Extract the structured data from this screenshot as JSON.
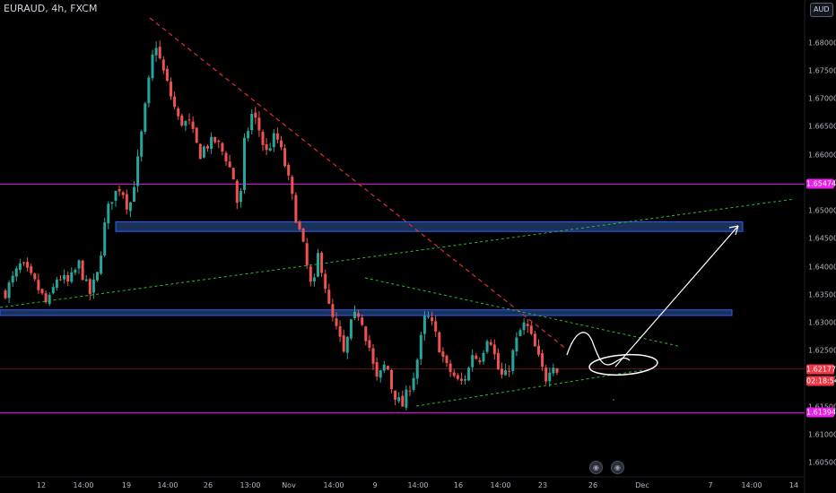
{
  "header": {
    "title": "EURAUD, 4h, FXCM",
    "currency_button": "AUD"
  },
  "colors": {
    "bg": "#000000",
    "bull": "#26a69a",
    "bear": "#ef5350",
    "magenta": "#cc11cc",
    "zone_fill": "#1e3a6b",
    "zone_stroke": "#2962ff",
    "green_dash": "#2eb82e",
    "red_dash": "#e03030",
    "annotation": "#ffffff",
    "current_price": "#f23645",
    "level_tag": "#e91ee9"
  },
  "chart_data": {
    "type": "candlestick",
    "symbol": "EURAUD",
    "timeframe": "4h",
    "broker": "FXCM",
    "y_range": [
      1.6025,
      1.686
    ],
    "y_ticks": [
      "1.68000",
      "1.67500",
      "1.67000",
      "1.66500",
      "1.66000",
      "1.65500",
      "1.65000",
      "1.64500",
      "1.64000",
      "1.63500",
      "1.63000",
      "1.62500",
      "1.62000",
      "1.61500",
      "1.61000",
      "1.60500"
    ],
    "x_ticks": [
      "12",
      "14:00",
      "19",
      "14:00",
      "26",
      "13:00",
      "Nov",
      "14:00",
      "9",
      "14:00",
      "16",
      "14:00",
      "23",
      "26",
      "Dec",
      "7",
      "14:00",
      "14"
    ],
    "candle_count": 151,
    "price_path": [
      [
        0,
        1.6355
      ],
      [
        6,
        1.6405
      ],
      [
        12,
        1.6365
      ],
      [
        16,
        1.633
      ],
      [
        20,
        1.6385
      ],
      [
        24,
        1.637
      ],
      [
        28,
        1.6405
      ],
      [
        32,
        1.635
      ],
      [
        35,
        1.6385
      ],
      [
        38,
        1.648
      ],
      [
        40,
        1.652
      ],
      [
        44,
        1.6545
      ],
      [
        47,
        1.65
      ],
      [
        50,
        1.6575
      ],
      [
        54,
        1.671
      ],
      [
        57,
        1.6805
      ],
      [
        59,
        1.6765
      ],
      [
        62,
        1.672
      ],
      [
        64,
        1.669
      ],
      [
        66,
        1.666
      ],
      [
        70,
        1.6655
      ],
      [
        74,
        1.66
      ],
      [
        76,
        1.6615
      ],
      [
        80,
        1.6625
      ],
      [
        84,
        1.6595
      ],
      [
        87,
        1.6555
      ],
      [
        89,
        1.649
      ],
      [
        91,
        1.662
      ],
      [
        94,
        1.6675
      ],
      [
        97,
        1.664
      ],
      [
        99,
        1.66
      ],
      [
        101,
        1.662
      ],
      [
        103,
        1.6635
      ],
      [
        106,
        1.659
      ],
      [
        108,
        1.655
      ],
      [
        111,
        1.648
      ],
      [
        113,
        1.6445
      ],
      [
        115,
        1.6395
      ],
      [
        117,
        1.635
      ],
      [
        119,
        1.642
      ],
      [
        121,
        1.639
      ],
      [
        123,
        1.633
      ],
      [
        125,
        1.63
      ],
      [
        127,
        1.6275
      ],
      [
        129,
        1.624
      ],
      [
        131,
        1.629
      ],
      [
        133,
        1.631
      ],
      [
        135,
        1.632
      ],
      [
        137,
        1.628
      ],
      [
        139,
        1.625
      ],
      [
        141,
        1.6195
      ],
      [
        143,
        1.621
      ],
      [
        145,
        1.623
      ],
      [
        147,
        1.6185
      ],
      [
        149,
        1.6165
      ],
      [
        151,
        1.615
      ],
      [
        153,
        1.6175
      ],
      [
        156,
        1.6215
      ],
      [
        158,
        1.6265
      ],
      [
        160,
        1.6315
      ],
      [
        162,
        1.63
      ],
      [
        164,
        1.6275
      ],
      [
        166,
        1.6245
      ],
      [
        168,
        1.622
      ],
      [
        170,
        1.621
      ],
      [
        173,
        1.619
      ],
      [
        176,
        1.621
      ],
      [
        178,
        1.625
      ],
      [
        180,
        1.623
      ],
      [
        182,
        1.6255
      ],
      [
        184,
        1.6285
      ],
      [
        186,
        1.6245
      ],
      [
        188,
        1.621
      ],
      [
        190,
        1.62
      ],
      [
        192,
        1.6225
      ],
      [
        194,
        1.626
      ],
      [
        196,
        1.6285
      ],
      [
        198,
        1.63
      ],
      [
        200,
        1.6275
      ],
      [
        202,
        1.625
      ],
      [
        204,
        1.622
      ],
      [
        206,
        1.62
      ],
      [
        208,
        1.6235
      ],
      [
        210,
        1.6215
      ]
    ],
    "horizontal_levels": [
      {
        "price": 1.65474,
        "label": "1.65474"
      },
      {
        "price": 1.61394,
        "label": "1.61394"
      }
    ],
    "zones": [
      {
        "from": 1.6463,
        "to": 1.648
      },
      {
        "from": 1.6313,
        "to": 1.6323
      }
    ],
    "current_price": {
      "value": 1.62177,
      "label": "1.62177",
      "countdown": "02:18:54"
    }
  },
  "events": [
    "event-1",
    "event-2"
  ]
}
